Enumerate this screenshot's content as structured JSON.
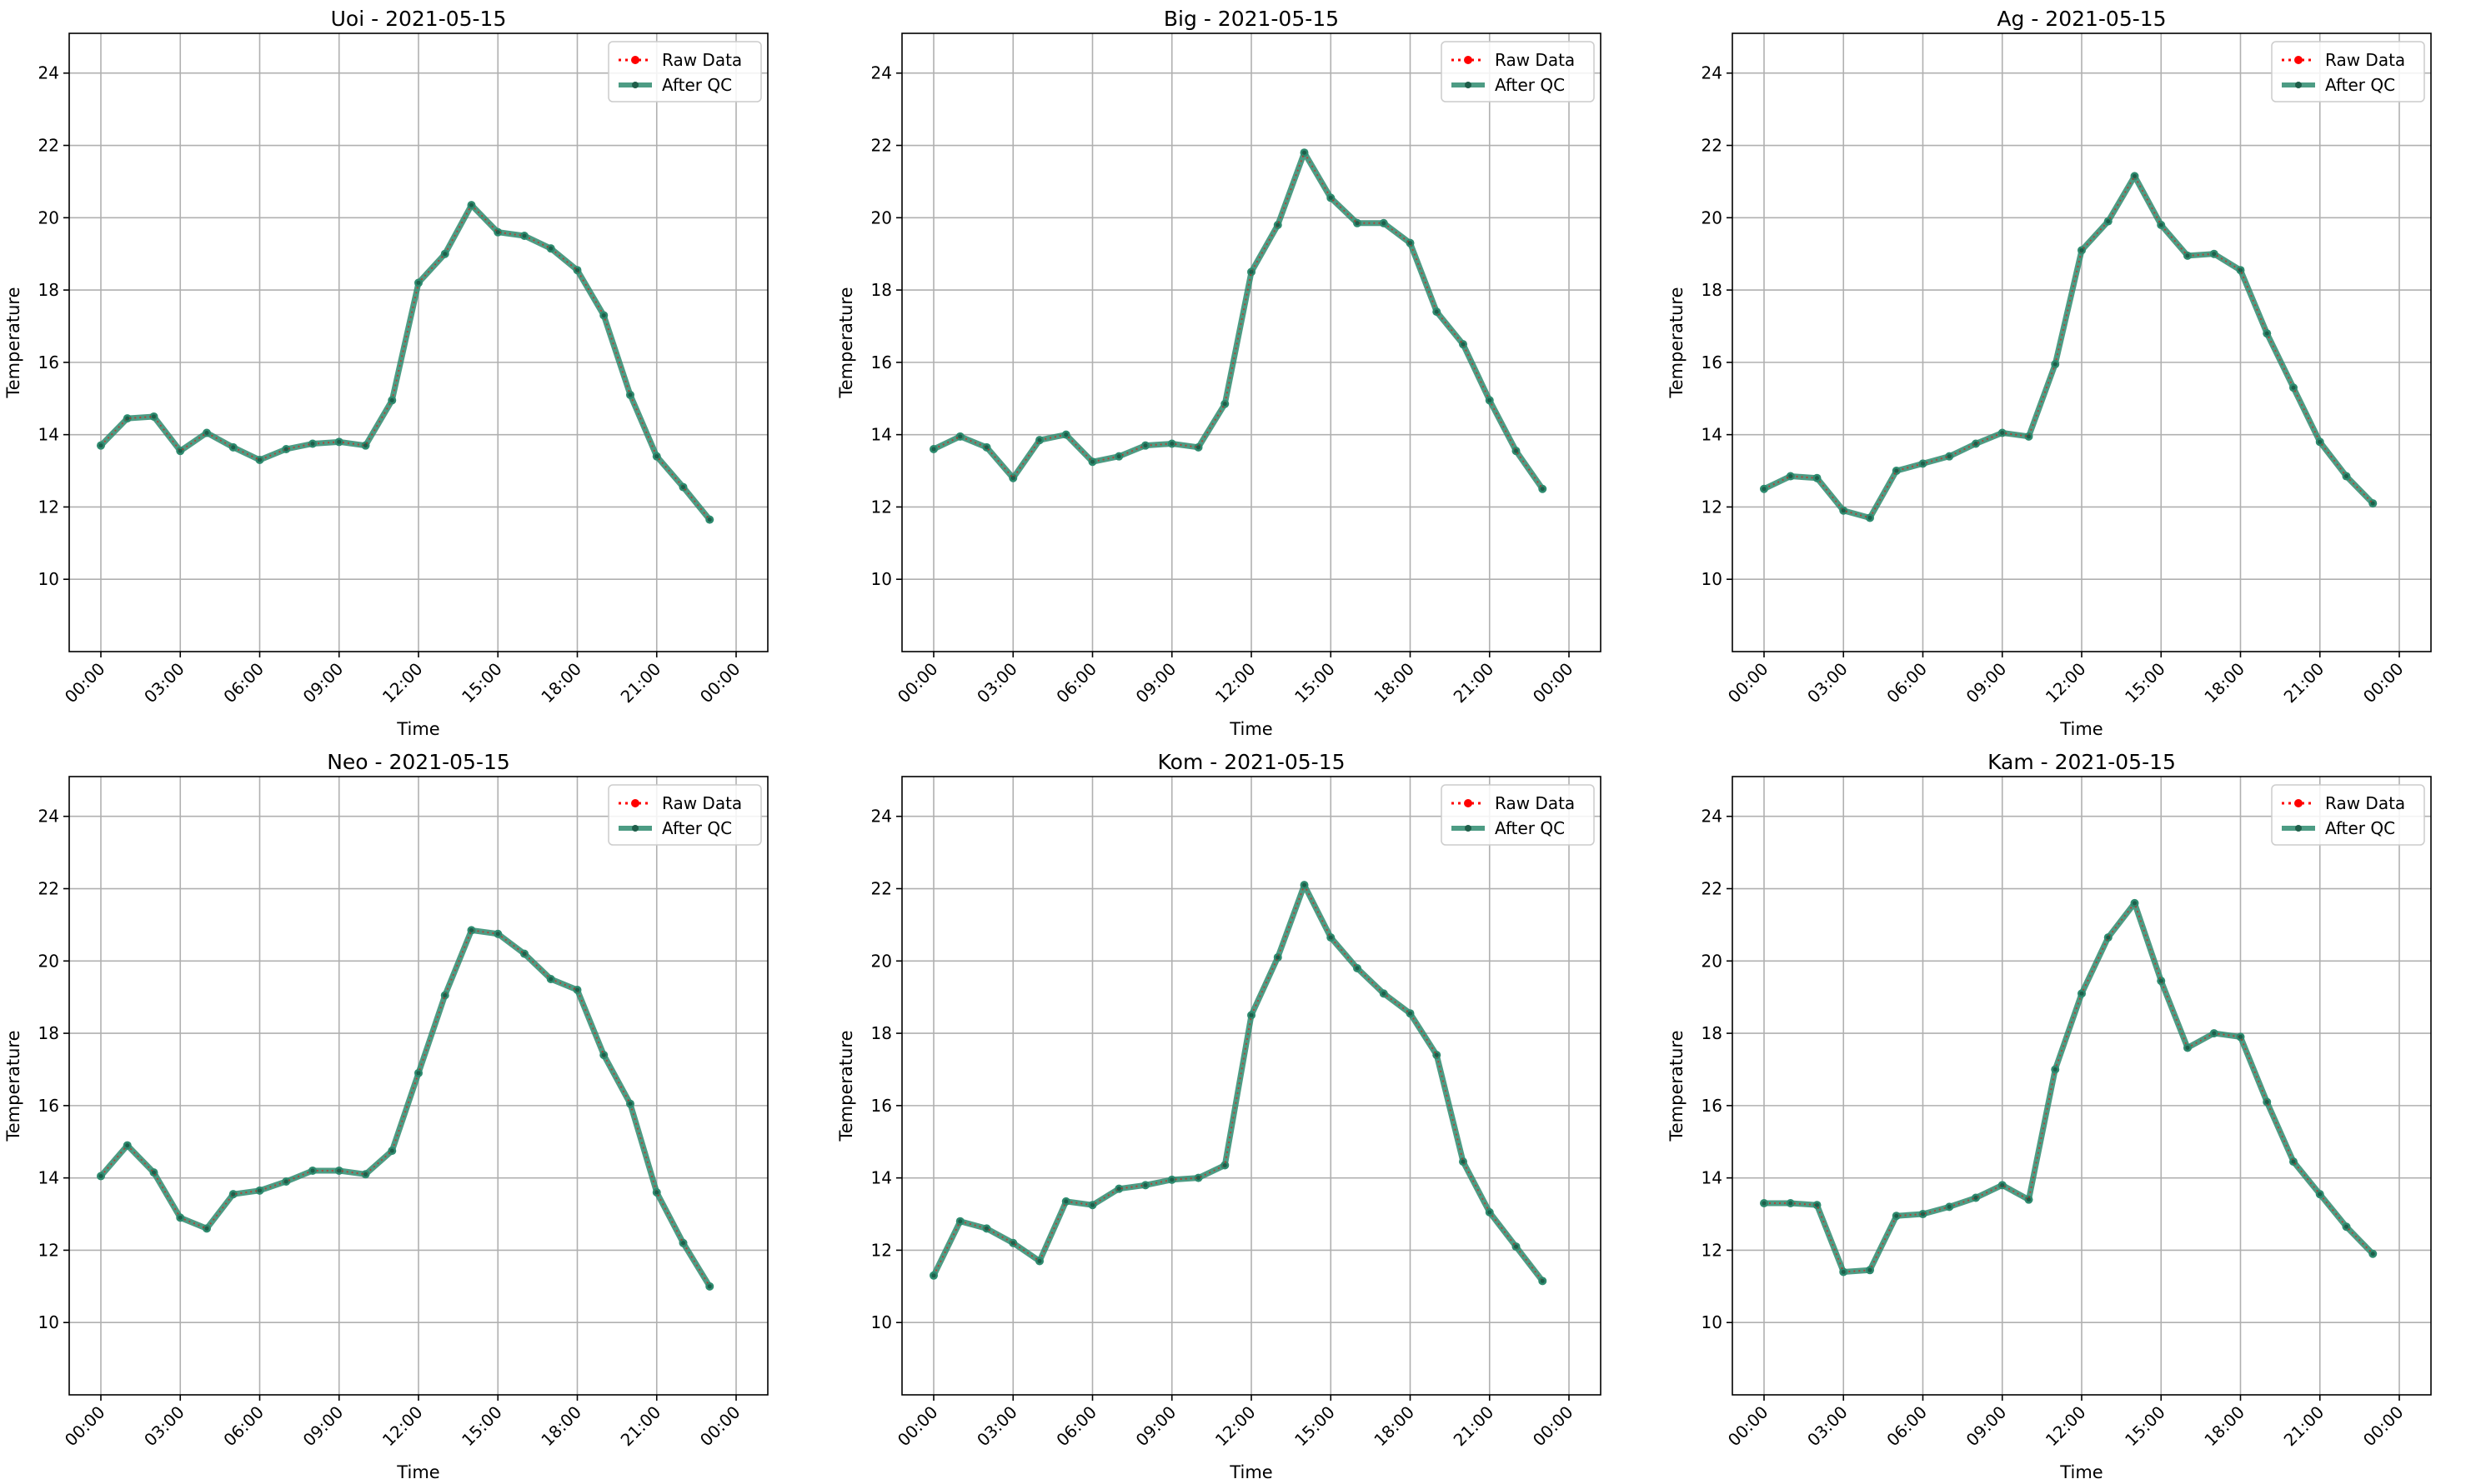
{
  "chart_data": [
    {
      "type": "line",
      "title": "Uoi - 2021-05-15",
      "xlabel": "Time",
      "ylabel": "Temperature",
      "ylim": [
        8.0,
        25.1
      ],
      "yticks": [
        "10",
        "12",
        "14",
        "16",
        "18",
        "20",
        "22",
        "24"
      ],
      "xticks": [
        "00:00",
        "03:00",
        "06:00",
        "09:00",
        "12:00",
        "15:00",
        "18:00",
        "21:00",
        "00:00"
      ],
      "x": [
        "00:00",
        "01:00",
        "02:00",
        "03:00",
        "04:00",
        "05:00",
        "06:00",
        "07:00",
        "08:00",
        "09:00",
        "10:00",
        "11:00",
        "12:00",
        "13:00",
        "14:00",
        "15:00",
        "16:00",
        "17:00",
        "18:00",
        "19:00",
        "20:00",
        "21:00",
        "22:00",
        "23:00"
      ],
      "grid": true,
      "legend": "top-right",
      "series": [
        {
          "name": "Raw Data",
          "color": "#ff0000",
          "values": [
            13.7,
            14.45,
            14.5,
            13.55,
            14.05,
            13.65,
            13.3,
            13.6,
            13.75,
            13.8,
            13.7,
            14.95,
            18.2,
            19.0,
            20.35,
            19.6,
            19.5,
            19.15,
            18.55,
            17.3,
            15.1,
            13.4,
            12.55,
            11.65
          ]
        },
        {
          "name": "After QC",
          "color": "#2e8b6f",
          "values": [
            13.7,
            14.45,
            14.5,
            13.55,
            14.05,
            13.65,
            13.3,
            13.6,
            13.75,
            13.8,
            13.7,
            14.95,
            18.2,
            19.0,
            20.35,
            19.6,
            19.5,
            19.15,
            18.55,
            17.3,
            15.1,
            13.4,
            12.55,
            11.65
          ]
        }
      ]
    },
    {
      "type": "line",
      "title": "Big - 2021-05-15",
      "xlabel": "Time",
      "ylabel": "Temperature",
      "ylim": [
        8.0,
        25.1
      ],
      "yticks": [
        "10",
        "12",
        "14",
        "16",
        "18",
        "20",
        "22",
        "24"
      ],
      "xticks": [
        "00:00",
        "03:00",
        "06:00",
        "09:00",
        "12:00",
        "15:00",
        "18:00",
        "21:00",
        "00:00"
      ],
      "x": [
        "00:00",
        "01:00",
        "02:00",
        "03:00",
        "04:00",
        "05:00",
        "06:00",
        "07:00",
        "08:00",
        "09:00",
        "10:00",
        "11:00",
        "12:00",
        "13:00",
        "14:00",
        "15:00",
        "16:00",
        "17:00",
        "18:00",
        "19:00",
        "20:00",
        "21:00",
        "22:00",
        "23:00"
      ],
      "grid": true,
      "legend": "top-right",
      "series": [
        {
          "name": "Raw Data",
          "color": "#ff0000",
          "values": [
            13.6,
            13.95,
            13.65,
            12.8,
            13.85,
            14.0,
            13.25,
            13.4,
            13.7,
            13.75,
            13.65,
            14.85,
            18.5,
            19.8,
            21.8,
            20.55,
            19.85,
            19.85,
            19.3,
            17.4,
            16.5,
            14.95,
            13.55,
            12.5
          ]
        },
        {
          "name": "After QC",
          "color": "#2e8b6f",
          "values": [
            13.6,
            13.95,
            13.65,
            12.8,
            13.85,
            14.0,
            13.25,
            13.4,
            13.7,
            13.75,
            13.65,
            14.85,
            18.5,
            19.8,
            21.8,
            20.55,
            19.85,
            19.85,
            19.3,
            17.4,
            16.5,
            14.95,
            13.55,
            12.5
          ]
        }
      ]
    },
    {
      "type": "line",
      "title": "Ag - 2021-05-15",
      "xlabel": "Time",
      "ylabel": "Temperature",
      "ylim": [
        8.0,
        25.1
      ],
      "yticks": [
        "10",
        "12",
        "14",
        "16",
        "18",
        "20",
        "22",
        "24"
      ],
      "xticks": [
        "00:00",
        "03:00",
        "06:00",
        "09:00",
        "12:00",
        "15:00",
        "18:00",
        "21:00",
        "00:00"
      ],
      "x": [
        "00:00",
        "01:00",
        "02:00",
        "03:00",
        "04:00",
        "05:00",
        "06:00",
        "07:00",
        "08:00",
        "09:00",
        "10:00",
        "11:00",
        "12:00",
        "13:00",
        "14:00",
        "15:00",
        "16:00",
        "17:00",
        "18:00",
        "19:00",
        "20:00",
        "21:00",
        "22:00",
        "23:00"
      ],
      "grid": true,
      "legend": "top-right",
      "series": [
        {
          "name": "Raw Data",
          "color": "#ff0000",
          "values": [
            12.5,
            12.85,
            12.8,
            11.9,
            11.7,
            13.0,
            13.2,
            13.4,
            13.75,
            14.05,
            13.95,
            15.95,
            19.1,
            19.9,
            21.15,
            19.8,
            18.95,
            19.0,
            18.55,
            16.8,
            15.3,
            13.8,
            12.85,
            12.1
          ]
        },
        {
          "name": "After QC",
          "color": "#2e8b6f",
          "values": [
            12.5,
            12.85,
            12.8,
            11.9,
            11.7,
            13.0,
            13.2,
            13.4,
            13.75,
            14.05,
            13.95,
            15.95,
            19.1,
            19.9,
            21.15,
            19.8,
            18.95,
            19.0,
            18.55,
            16.8,
            15.3,
            13.8,
            12.85,
            12.1
          ]
        }
      ]
    },
    {
      "type": "line",
      "title": "Neo - 2021-05-15",
      "xlabel": "Time",
      "ylabel": "Temperature",
      "ylim": [
        8.0,
        25.1
      ],
      "yticks": [
        "10",
        "12",
        "14",
        "16",
        "18",
        "20",
        "22",
        "24"
      ],
      "xticks": [
        "00:00",
        "03:00",
        "06:00",
        "09:00",
        "12:00",
        "15:00",
        "18:00",
        "21:00",
        "00:00"
      ],
      "x": [
        "00:00",
        "01:00",
        "02:00",
        "03:00",
        "04:00",
        "05:00",
        "06:00",
        "07:00",
        "08:00",
        "09:00",
        "10:00",
        "11:00",
        "12:00",
        "13:00",
        "14:00",
        "15:00",
        "16:00",
        "17:00",
        "18:00",
        "19:00",
        "20:00",
        "21:00",
        "22:00",
        "23:00"
      ],
      "grid": true,
      "legend": "top-right",
      "series": [
        {
          "name": "Raw Data",
          "color": "#ff0000",
          "values": [
            14.05,
            14.9,
            14.15,
            12.9,
            12.6,
            13.55,
            13.65,
            13.9,
            14.2,
            14.2,
            14.1,
            14.75,
            16.9,
            19.05,
            20.85,
            20.75,
            20.2,
            19.5,
            19.2,
            17.4,
            16.05,
            13.6,
            12.2,
            11.0
          ]
        },
        {
          "name": "After QC",
          "color": "#2e8b6f",
          "values": [
            14.05,
            14.9,
            14.15,
            12.9,
            12.6,
            13.55,
            13.65,
            13.9,
            14.2,
            14.2,
            14.1,
            14.75,
            16.9,
            19.05,
            20.85,
            20.75,
            20.2,
            19.5,
            19.2,
            17.4,
            16.05,
            13.6,
            12.2,
            11.0
          ]
        }
      ]
    },
    {
      "type": "line",
      "title": "Kom - 2021-05-15",
      "xlabel": "Time",
      "ylabel": "Temperature",
      "ylim": [
        8.0,
        25.1
      ],
      "yticks": [
        "10",
        "12",
        "14",
        "16",
        "18",
        "20",
        "22",
        "24"
      ],
      "xticks": [
        "00:00",
        "03:00",
        "06:00",
        "09:00",
        "12:00",
        "15:00",
        "18:00",
        "21:00",
        "00:00"
      ],
      "x": [
        "00:00",
        "01:00",
        "02:00",
        "03:00",
        "04:00",
        "05:00",
        "06:00",
        "07:00",
        "08:00",
        "09:00",
        "10:00",
        "11:00",
        "12:00",
        "13:00",
        "14:00",
        "15:00",
        "16:00",
        "17:00",
        "18:00",
        "19:00",
        "20:00",
        "21:00",
        "22:00",
        "23:00"
      ],
      "grid": true,
      "legend": "top-right",
      "series": [
        {
          "name": "Raw Data",
          "color": "#ff0000",
          "values": [
            11.3,
            12.8,
            12.6,
            12.2,
            11.7,
            13.35,
            13.25,
            13.7,
            13.8,
            13.95,
            14.0,
            14.35,
            18.5,
            20.1,
            22.1,
            20.65,
            19.8,
            19.1,
            18.55,
            17.4,
            14.45,
            13.05,
            12.1,
            11.15
          ]
        },
        {
          "name": "After QC",
          "color": "#2e8b6f",
          "values": [
            11.3,
            12.8,
            12.6,
            12.2,
            11.7,
            13.35,
            13.25,
            13.7,
            13.8,
            13.95,
            14.0,
            14.35,
            18.5,
            20.1,
            22.1,
            20.65,
            19.8,
            19.1,
            18.55,
            17.4,
            14.45,
            13.05,
            12.1,
            11.15
          ]
        }
      ]
    },
    {
      "type": "line",
      "title": "Kam - 2021-05-15",
      "xlabel": "Time",
      "ylabel": "Temperature",
      "ylim": [
        8.0,
        25.1
      ],
      "yticks": [
        "10",
        "12",
        "14",
        "16",
        "18",
        "20",
        "22",
        "24"
      ],
      "xticks": [
        "00:00",
        "03:00",
        "06:00",
        "09:00",
        "12:00",
        "15:00",
        "18:00",
        "21:00",
        "00:00"
      ],
      "x": [
        "00:00",
        "01:00",
        "02:00",
        "03:00",
        "04:00",
        "05:00",
        "06:00",
        "07:00",
        "08:00",
        "09:00",
        "10:00",
        "11:00",
        "12:00",
        "13:00",
        "14:00",
        "15:00",
        "16:00",
        "17:00",
        "18:00",
        "19:00",
        "20:00",
        "21:00",
        "22:00",
        "23:00"
      ],
      "grid": true,
      "legend": "top-right",
      "series": [
        {
          "name": "Raw Data",
          "color": "#ff0000",
          "values": [
            13.3,
            13.3,
            13.25,
            11.4,
            11.45,
            12.95,
            13.0,
            13.2,
            13.45,
            13.8,
            13.4,
            17.0,
            19.1,
            20.65,
            21.6,
            19.45,
            17.6,
            18.0,
            17.9,
            16.1,
            14.45,
            13.55,
            12.65,
            11.9
          ]
        },
        {
          "name": "After QC",
          "color": "#2e8b6f",
          "values": [
            13.3,
            13.3,
            13.25,
            11.4,
            11.45,
            12.95,
            13.0,
            13.2,
            13.45,
            13.8,
            13.4,
            17.0,
            19.1,
            20.65,
            21.6,
            19.45,
            17.6,
            18.0,
            17.9,
            16.1,
            14.45,
            13.55,
            12.65,
            11.9
          ]
        }
      ]
    }
  ]
}
